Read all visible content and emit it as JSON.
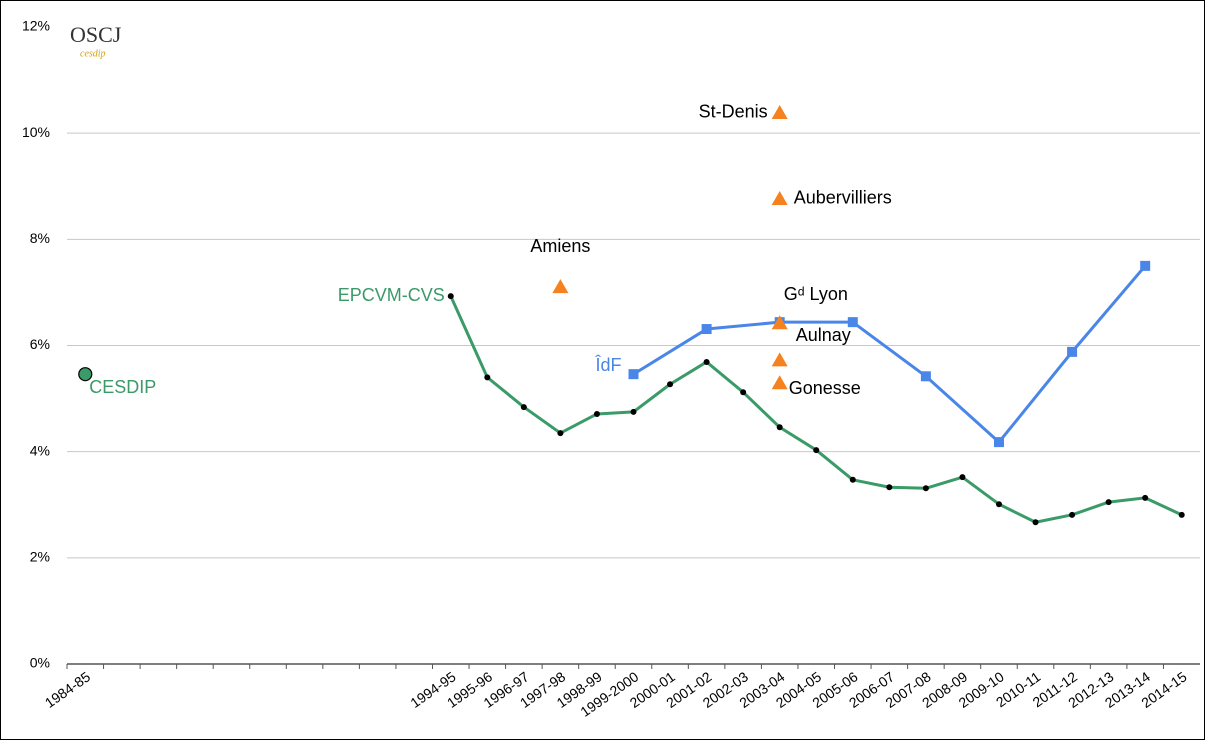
{
  "chart_data": {
    "type": "line",
    "logo": {
      "title": "OSCJ",
      "subtitle": "cesdip"
    },
    "categories": [
      "1984-85",
      null,
      null,
      null,
      null,
      null,
      null,
      null,
      null,
      null,
      "1994-95",
      "1995-96",
      "1996-97",
      "1997-98",
      "1998-99",
      "1999-2000",
      "2000-01",
      "2001-02",
      "2002-03",
      "2003-04",
      "2004-05",
      "2005-06",
      "2006-07",
      "2007-08",
      "2008-09",
      "2009-10",
      "2010-11",
      "2011-12",
      "2012-13",
      "2013-14",
      "2014-15"
    ],
    "ylim": [
      0,
      12
    ],
    "yticks": [
      {
        "value": 0,
        "label": "0%"
      },
      {
        "value": 2,
        "label": "2%"
      },
      {
        "value": 4,
        "label": "4%"
      },
      {
        "value": 6,
        "label": "6%"
      },
      {
        "value": 8,
        "label": "8%"
      },
      {
        "value": 10,
        "label": "10%"
      },
      {
        "value": 12,
        "label": "12%"
      }
    ],
    "grid": true,
    "series": [
      {
        "name": "EPCVM-CVS",
        "color": "#3a9a68",
        "marker": "dot",
        "marker_color": "#000000",
        "values": [
          null,
          null,
          null,
          null,
          null,
          null,
          null,
          null,
          null,
          null,
          6.93,
          5.4,
          4.84,
          4.35,
          4.71,
          4.75,
          5.27,
          5.69,
          5.12,
          4.46,
          4.03,
          3.47,
          3.33,
          3.31,
          3.52,
          3.01,
          2.67,
          2.81,
          3.05,
          3.13,
          2.81
        ]
      },
      {
        "name": "ÎdF",
        "color": "#4a86e8",
        "marker": "square",
        "marker_color": "#4a86e8",
        "connect_gaps": true,
        "values": [
          null,
          null,
          null,
          null,
          null,
          null,
          null,
          null,
          null,
          null,
          null,
          null,
          null,
          null,
          null,
          5.46,
          null,
          6.31,
          null,
          6.44,
          null,
          6.44,
          null,
          5.42,
          null,
          4.18,
          null,
          5.88,
          null,
          7.5,
          null
        ]
      },
      {
        "name": "CESDIP",
        "color": "#3a9a68",
        "marker": "circle",
        "marker_color": "#3a9a68",
        "values": [
          5.46,
          null,
          null,
          null,
          null,
          null,
          null,
          null,
          null,
          null,
          null,
          null,
          null,
          null,
          null,
          null,
          null,
          null,
          null,
          null,
          null,
          null,
          null,
          null,
          null,
          null,
          null,
          null,
          null,
          null,
          null
        ]
      }
    ],
    "point_color": "#f5821f",
    "points": [
      {
        "label": "Amiens",
        "category": "1997-98",
        "value": 7.1
      },
      {
        "label": "St-Denis",
        "category": "2003-04",
        "value": 10.38
      },
      {
        "label": "Aubervilliers",
        "category": "2003-04",
        "value": 8.76
      },
      {
        "label": "Gᵈ Lyon",
        "category": "2003-04",
        "value": 6.42
      },
      {
        "label": "Aulnay",
        "category": "2003-04",
        "value": 5.72
      },
      {
        "label": "Gonesse",
        "category": "2003-04",
        "value": 5.29
      }
    ]
  }
}
